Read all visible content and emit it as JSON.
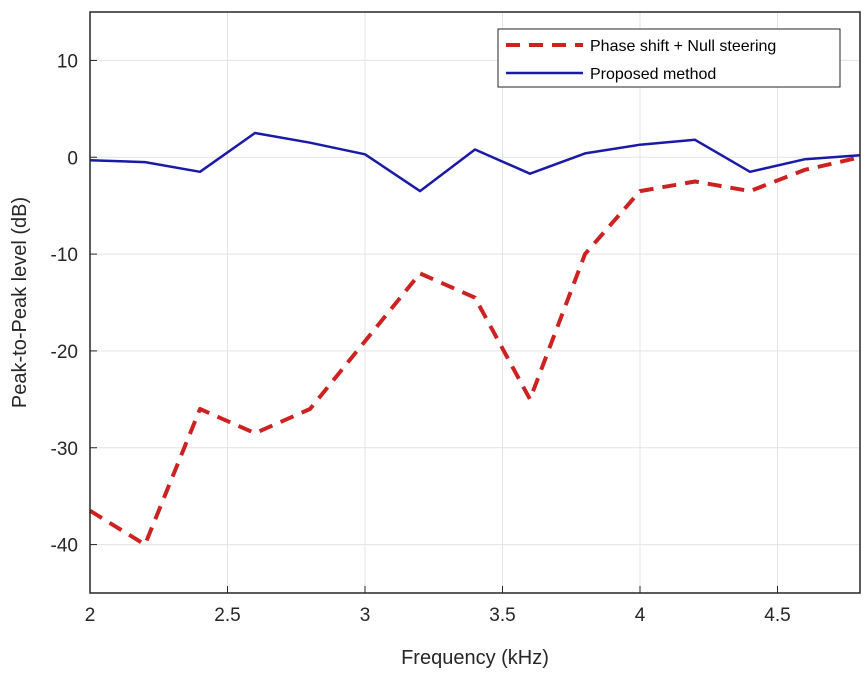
{
  "chart_data": {
    "type": "line",
    "title": "",
    "xlabel": "Frequency (kHz)",
    "ylabel": "Peak-to-Peak level (dB)",
    "xlim": [
      2,
      4.8
    ],
    "ylim": [
      -45,
      15
    ],
    "xticks": [
      2,
      2.5,
      3,
      3.5,
      4,
      4.5
    ],
    "xtick_labels": [
      "2",
      "2.5",
      "3",
      "3.5",
      "4",
      "4.5"
    ],
    "yticks": [
      10,
      0,
      -10,
      -20,
      -30,
      -40
    ],
    "ytick_labels": [
      "10",
      "0",
      "-10",
      "-20",
      "-30",
      "-40"
    ],
    "grid": true,
    "legend_position": "top-right",
    "series": [
      {
        "name": "Phase shift + Null steering",
        "color": "#cc2222",
        "style": "dashed",
        "x": [
          2.0,
          2.2,
          2.4,
          2.6,
          2.8,
          3.0,
          3.2,
          3.4,
          3.6,
          3.8,
          4.0,
          4.2,
          4.4,
          4.6,
          4.8
        ],
        "y": [
          -36.5,
          -40,
          -26,
          -28.5,
          -26,
          -19,
          -12,
          -14.5,
          -25,
          -10,
          -3.5,
          -2.5,
          -3.5,
          -1.3,
          0
        ]
      },
      {
        "name": "Proposed method",
        "color": "#1a1aa6",
        "style": "solid",
        "x": [
          2.0,
          2.2,
          2.4,
          2.6,
          2.8,
          3.0,
          3.2,
          3.4,
          3.6,
          3.8,
          4.0,
          4.2,
          4.4,
          4.6,
          4.8
        ],
        "y": [
          -0.3,
          -0.5,
          -1.5,
          2.5,
          1.5,
          0.3,
          -3.5,
          0.8,
          -1.7,
          0.4,
          1.3,
          1.8,
          -1.5,
          -0.2,
          0.2
        ]
      }
    ]
  }
}
